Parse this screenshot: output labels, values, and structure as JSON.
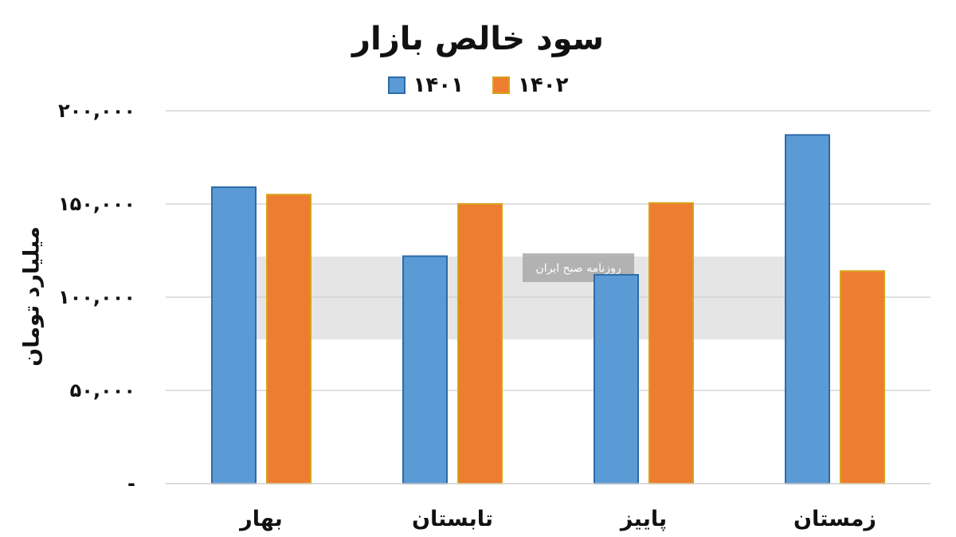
{
  "chart_data": {
    "type": "bar",
    "title": "سود خالص بازار",
    "ylabel": "میلیارد تومان",
    "xlabel": "",
    "categories": [
      "بهار",
      "تابستان",
      "پاییز",
      "زمستان"
    ],
    "series": [
      {
        "name": "۱۴۰۱",
        "color": "#5b9bd5",
        "border": "#2e6aa8",
        "values": [
          159000,
          122000,
          112000,
          187000
        ]
      },
      {
        "name": "۱۴۰۲",
        "color": "#ed7d31",
        "border": "#d9a21b",
        "values": [
          155000,
          150000,
          150500,
          114000
        ]
      }
    ],
    "ylim": [
      0,
      200000
    ],
    "yticks": [
      {
        "value": 0,
        "label": "-"
      },
      {
        "value": 50000,
        "label": "۵۰,۰۰۰"
      },
      {
        "value": 100000,
        "label": "۱۰۰,۰۰۰"
      },
      {
        "value": 150000,
        "label": "۱۵۰,۰۰۰"
      },
      {
        "value": 200000,
        "label": "۲۰۰,۰۰۰"
      }
    ],
    "grid": true,
    "legend_position": "top",
    "watermark": {
      "label": "روزنامه صبح ایران"
    }
  }
}
